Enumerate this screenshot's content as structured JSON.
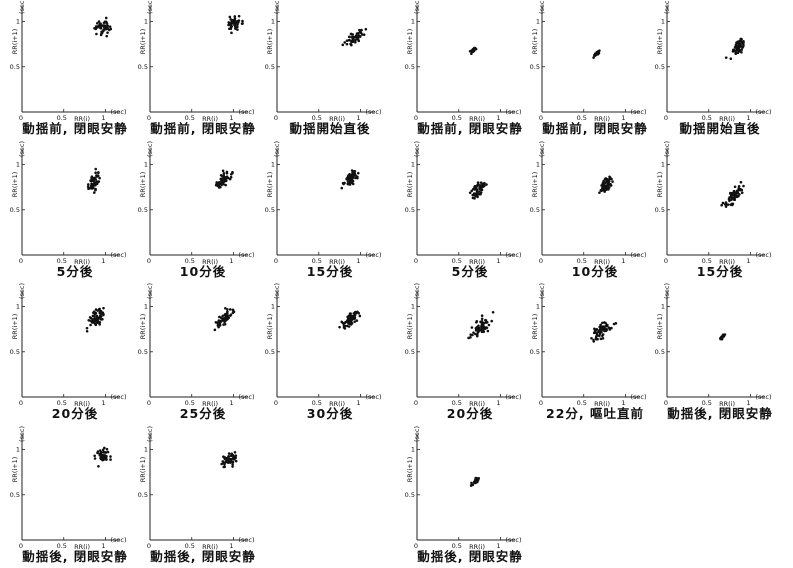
{
  "chart_data": [
    {
      "type": "scatter",
      "caption": "動揺前, 閉眼安静",
      "center": [
        0.97,
        0.94
      ],
      "spread": [
        0.045,
        0.045
      ],
      "corr": 0.2,
      "n": 50
    },
    {
      "type": "scatter",
      "caption": "動揺前, 閉眼安静",
      "center": [
        1.0,
        0.97
      ],
      "spread": [
        0.045,
        0.04
      ],
      "corr": 0.2,
      "n": 50
    },
    {
      "type": "scatter",
      "caption": "動揺開始直後",
      "center": [
        0.93,
        0.83
      ],
      "spread": [
        0.05,
        0.04
      ],
      "corr": 0.55,
      "n": 45
    },
    {
      "type": "scatter",
      "caption": "5分後",
      "center": [
        0.87,
        0.82
      ],
      "spread": [
        0.04,
        0.055
      ],
      "corr": 0.5,
      "n": 55
    },
    {
      "type": "scatter",
      "caption": "10分後",
      "center": [
        0.88,
        0.83
      ],
      "spread": [
        0.05,
        0.045
      ],
      "corr": 0.6,
      "n": 55
    },
    {
      "type": "scatter",
      "caption": "15分後",
      "center": [
        0.88,
        0.85
      ],
      "spread": [
        0.045,
        0.045
      ],
      "corr": 0.6,
      "n": 55
    },
    {
      "type": "scatter",
      "caption": "20分後",
      "center": [
        0.9,
        0.88
      ],
      "spread": [
        0.05,
        0.045
      ],
      "corr": 0.4,
      "n": 60
    },
    {
      "type": "scatter",
      "caption": "25分後",
      "center": [
        0.88,
        0.86
      ],
      "spread": [
        0.055,
        0.055
      ],
      "corr": 0.7,
      "n": 60
    },
    {
      "type": "scatter",
      "caption": "30分後",
      "center": [
        0.88,
        0.86
      ],
      "spread": [
        0.045,
        0.045
      ],
      "corr": 0.6,
      "n": 60
    },
    {
      "type": "scatter",
      "caption": "動揺後, 閉眼安静",
      "center": [
        0.97,
        0.94
      ],
      "spread": [
        0.04,
        0.035
      ],
      "corr": 0.2,
      "n": 45
    },
    {
      "type": "scatter",
      "caption": "動揺後, 閉眼安静",
      "center": [
        0.95,
        0.9
      ],
      "spread": [
        0.05,
        0.045
      ],
      "corr": 0.6,
      "n": 50
    },
    {
      "type": "scatter",
      "caption": "動揺前, 閉眼安静",
      "center": [
        0.67,
        0.68
      ],
      "spread": [
        0.018,
        0.016
      ],
      "corr": 0.85,
      "n": 40
    },
    {
      "type": "scatter",
      "caption": "動揺前, 閉眼安静",
      "center": [
        0.66,
        0.65
      ],
      "spread": [
        0.015,
        0.014
      ],
      "corr": 0.85,
      "n": 40
    },
    {
      "type": "scatter",
      "caption": "動揺開始直後",
      "center": [
        0.85,
        0.72
      ],
      "spread": [
        0.045,
        0.05
      ],
      "corr": 0.7,
      "n": 55
    },
    {
      "type": "scatter",
      "caption": "5分後",
      "center": [
        0.73,
        0.72
      ],
      "spread": [
        0.04,
        0.045
      ],
      "corr": 0.5,
      "n": 55
    },
    {
      "type": "scatter",
      "caption": "10分後",
      "center": [
        0.76,
        0.77
      ],
      "spread": [
        0.04,
        0.04
      ],
      "corr": 0.6,
      "n": 55
    },
    {
      "type": "scatter",
      "caption": "15分後",
      "center": [
        0.79,
        0.65
      ],
      "spread": [
        0.06,
        0.06
      ],
      "corr": 0.8,
      "n": 60
    },
    {
      "type": "scatter",
      "caption": "20分後",
      "center": [
        0.77,
        0.78
      ],
      "spread": [
        0.055,
        0.05
      ],
      "corr": 0.6,
      "n": 60
    },
    {
      "type": "scatter",
      "caption": "22分, 嘔吐直前",
      "center": [
        0.72,
        0.74
      ],
      "spread": [
        0.06,
        0.055
      ],
      "corr": 0.6,
      "n": 60
    },
    {
      "type": "scatter",
      "caption": "動揺後, 閉眼安静",
      "center": [
        0.67,
        0.67
      ],
      "spread": [
        0.012,
        0.012
      ],
      "corr": 0.8,
      "n": 35
    },
    {
      "type": "scatter",
      "caption": "動揺後, 閉眼安静",
      "center": [
        0.7,
        0.65
      ],
      "spread": [
        0.025,
        0.025
      ],
      "corr": 0.8,
      "n": 25
    }
  ],
  "axes": {
    "xlabel": "RR(i)",
    "ylabel": "RR(i+1)",
    "unit": "(sec)",
    "xticks": [
      "0",
      "0.5",
      "1"
    ],
    "yticks": [
      "0.5",
      "1"
    ],
    "xlim": [
      0,
      1.15
    ],
    "ylim": [
      0,
      1.15
    ]
  },
  "colors": {
    "points": "#111111",
    "axes": "#222222"
  }
}
